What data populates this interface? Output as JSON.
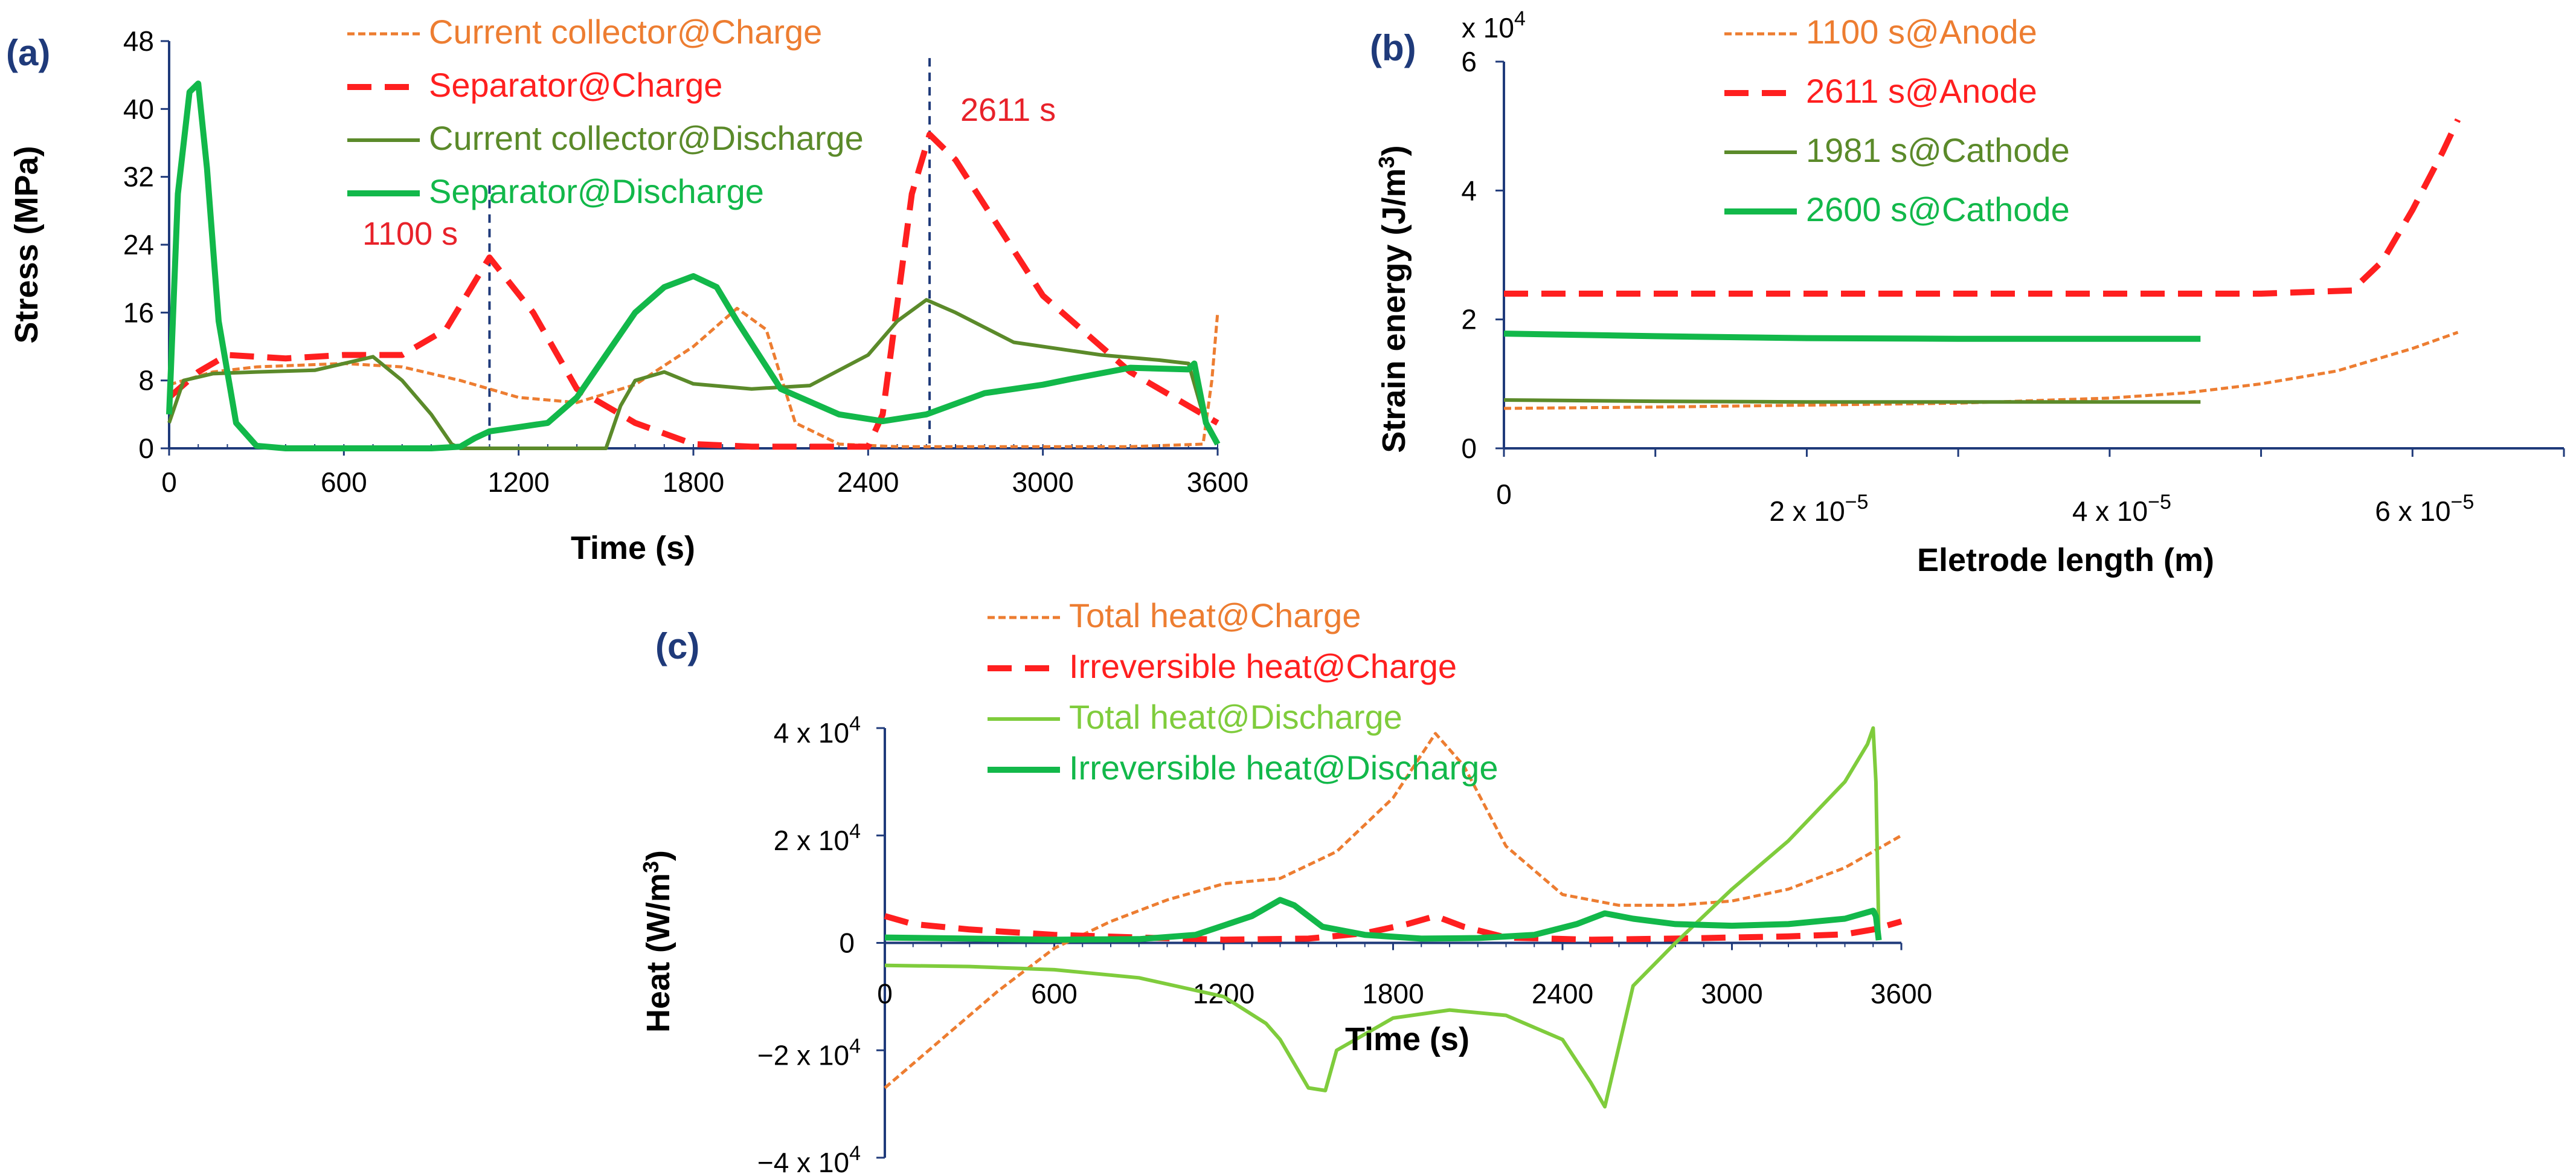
{
  "colors": {
    "orange": "#ed7d31",
    "red": "#ff1f1f",
    "olive": "#5b8a2a",
    "green": "#12b84a",
    "light_green": "#7fcc3c",
    "axis": "#1f3a7a",
    "guide": "#1f3a7a"
  },
  "chart_data": [
    {
      "panel_label": "(a)",
      "type": "line",
      "xlabel": "Time (s)",
      "ylabel": "Stress (MPa)",
      "xlim": [
        0,
        3600
      ],
      "ylim": [
        0,
        48
      ],
      "xticks": [
        0,
        600,
        1200,
        1800,
        2400,
        3000,
        3600
      ],
      "yticks": [
        0,
        8,
        16,
        24,
        32,
        40,
        48
      ],
      "legend_position": "top-center",
      "annotations": [
        {
          "text": "1100 s",
          "x": 1100,
          "y": 22.5
        },
        {
          "text": "2611 s",
          "x": 2611,
          "y": 38
        }
      ],
      "guides": [
        1100,
        2611
      ],
      "series": [
        {
          "name": "Current collector@Charge",
          "color": "orange",
          "style": "dotted",
          "x": [
            0,
            150,
            300,
            600,
            800,
            1000,
            1200,
            1400,
            1600,
            1800,
            1950,
            2050,
            2150,
            2300,
            2500,
            2700,
            3000,
            3300,
            3550,
            3580,
            3600
          ],
          "y": [
            7.5,
            9,
            9.6,
            10,
            9.6,
            8,
            6,
            5.4,
            7.5,
            12,
            16.5,
            14,
            3,
            0.5,
            0.2,
            0.2,
            0.2,
            0.2,
            0.5,
            8,
            16
          ]
        },
        {
          "name": "Separator@Charge",
          "color": "red",
          "style": "dashed",
          "x": [
            0,
            100,
            200,
            400,
            600,
            800,
            950,
            1100,
            1250,
            1400,
            1600,
            1800,
            2000,
            2200,
            2400,
            2450,
            2550,
            2611,
            2700,
            3000,
            3300,
            3500,
            3600
          ],
          "y": [
            6,
            9,
            11,
            10.6,
            11,
            11,
            14,
            22.5,
            16,
            7,
            3,
            0.5,
            0.2,
            0.2,
            0.2,
            4,
            30,
            37,
            34,
            18,
            9,
            5,
            3
          ]
        },
        {
          "name": "Current collector@Discharge",
          "color": "olive",
          "style": "solid",
          "x": [
            0,
            50,
            150,
            300,
            500,
            700,
            800,
            900,
            970,
            1000,
            1300,
            1500,
            1550,
            1600,
            1700,
            1800,
            2000,
            2200,
            2400,
            2500,
            2600,
            2700,
            2900,
            3200,
            3400,
            3500,
            3550,
            3600
          ],
          "y": [
            3,
            8,
            8.8,
            9,
            9.2,
            10.8,
            8,
            4,
            0.5,
            0,
            0,
            0,
            5,
            8,
            9,
            7.6,
            7,
            7.4,
            11,
            15,
            17.5,
            16,
            12.5,
            11,
            10.4,
            10,
            4,
            0.5
          ]
        },
        {
          "name": "Separator@Discharge",
          "color": "green",
          "style": "thick",
          "x": [
            0,
            30,
            70,
            100,
            130,
            170,
            230,
            300,
            400,
            600,
            900,
            1000,
            1050,
            1100,
            1200,
            1300,
            1400,
            1500,
            1600,
            1700,
            1800,
            1880,
            1950,
            2100,
            2300,
            2450,
            2600,
            2800,
            3000,
            3100,
            3300,
            3500,
            3520,
            3560,
            3600
          ],
          "y": [
            4,
            30,
            42,
            43,
            33,
            15,
            3,
            0.3,
            0,
            0,
            0,
            0.2,
            1.2,
            2,
            2.5,
            3,
            6,
            11,
            16,
            19,
            20.3,
            19,
            15,
            7,
            4,
            3.2,
            4,
            6.5,
            7.5,
            8.2,
            9.5,
            9.3,
            10,
            3,
            0.5
          ]
        }
      ]
    },
    {
      "panel_label": "(b)",
      "type": "line",
      "xlabel": "Eletrode length (m)",
      "ylabel": "Strain energy (J/m3)",
      "ylabel_main": "Strain energy (J/m",
      "ylabel_sup": "3",
      "ylabel_end": ")",
      "y_multiplier": "x 10",
      "y_multiplier_exp": "4",
      "xlim": [
        0,
        7e-05
      ],
      "ylim": [
        0,
        6
      ],
      "xtick_labels": [
        "0",
        "2 x 10",
        "4 x 10",
        "6 x 10"
      ],
      "xtick_exp": "−5",
      "xtick_values": [
        0,
        2e-05,
        4e-05,
        6e-05
      ],
      "yticks": [
        0,
        2,
        4,
        6
      ],
      "legend_position": "top-center",
      "series": [
        {
          "name": "1100 s@Anode",
          "color": "orange",
          "style": "dotted",
          "x": [
            0,
            1e-05,
            2e-05,
            3e-05,
            4e-05,
            4.5e-05,
            5e-05,
            5.5e-05,
            6e-05,
            6.3e-05
          ],
          "y": [
            0.62,
            0.64,
            0.67,
            0.7,
            0.78,
            0.86,
            1.0,
            1.2,
            1.55,
            1.8
          ]
        },
        {
          "name": "2611 s@Anode",
          "color": "red",
          "style": "dashed",
          "x": [
            0,
            1e-05,
            2e-05,
            3e-05,
            4e-05,
            5e-05,
            5.6e-05,
            5.8e-05,
            6e-05,
            6.2e-05,
            6.3e-05
          ],
          "y": [
            2.4,
            2.4,
            2.4,
            2.4,
            2.4,
            2.4,
            2.45,
            2.9,
            3.7,
            4.6,
            5.1
          ]
        },
        {
          "name": "1981 s@Cathode",
          "color": "olive",
          "style": "solid",
          "x": [
            0,
            1e-05,
            2e-05,
            3e-05,
            4e-05,
            4.6e-05
          ],
          "y": [
            0.75,
            0.73,
            0.72,
            0.72,
            0.72,
            0.72
          ]
        },
        {
          "name": "2600 s@Cathode",
          "color": "green",
          "style": "thick",
          "x": [
            0,
            1e-05,
            2e-05,
            3e-05,
            4e-05,
            4.6e-05
          ],
          "y": [
            1.78,
            1.74,
            1.71,
            1.7,
            1.7,
            1.7
          ]
        }
      ]
    },
    {
      "panel_label": "(c)",
      "type": "line",
      "xlabel": "Time (s)",
      "ylabel": "Heat (W/m3)",
      "ylabel_main": "Heat (W/m",
      "ylabel_sup": "3",
      "ylabel_end": ")",
      "xlim": [
        0,
        3600
      ],
      "ylim": [
        -40000,
        40000
      ],
      "xticks": [
        0,
        600,
        1200,
        1800,
        2400,
        3000,
        3600
      ],
      "ytick_values": [
        -40000,
        -20000,
        0,
        20000,
        40000
      ],
      "ytick_labels": [
        "−4 x 10",
        "−2 x 10",
        "0",
        "2 x 10",
        "4 x 10"
      ],
      "ytick_exp": "4",
      "legend_position": "top-center",
      "series": [
        {
          "name": "Total heat@Charge",
          "color": "orange",
          "style": "dotted",
          "x": [
            0,
            200,
            400,
            600,
            800,
            1000,
            1200,
            1400,
            1600,
            1800,
            1950,
            2050,
            2200,
            2400,
            2600,
            2800,
            3000,
            3200,
            3400,
            3600
          ],
          "y": [
            -27000,
            -18000,
            -9000,
            -1000,
            4000,
            8000,
            11000,
            12000,
            17000,
            27000,
            39000,
            33000,
            18000,
            9000,
            7000,
            7000,
            7800,
            10000,
            14000,
            20000
          ]
        },
        {
          "name": "Irreversible heat@Charge",
          "color": "red",
          "style": "dashed",
          "x": [
            0,
            100,
            300,
            600,
            900,
            1200,
            1500,
            1700,
            1850,
            1950,
            2050,
            2200,
            2500,
            2800,
            3000,
            3200,
            3400,
            3500,
            3600
          ],
          "y": [
            5000,
            3500,
            2500,
            1500,
            1000,
            600,
            800,
            1800,
            3500,
            5000,
            3000,
            1000,
            600,
            800,
            1000,
            1200,
            1600,
            2500,
            4000
          ]
        },
        {
          "name": "Total heat@Discharge",
          "color": "light_green",
          "style": "solid",
          "x": [
            0,
            300,
            600,
            900,
            1200,
            1350,
            1400,
            1500,
            1560,
            1600,
            1800,
            2000,
            2200,
            2400,
            2500,
            2550,
            2650,
            2800,
            3000,
            3200,
            3400,
            3480,
            3500,
            3510,
            3520
          ],
          "y": [
            -4200,
            -4400,
            -5000,
            -6500,
            -10000,
            -15000,
            -18000,
            -27000,
            -27500,
            -20000,
            -14000,
            -12500,
            -13500,
            -18000,
            -26000,
            -30500,
            -8000,
            0,
            10000,
            19000,
            30000,
            37000,
            40000,
            30000,
            2000
          ]
        },
        {
          "name": "Irreversible heat@Discharge",
          "color": "green",
          "style": "thick",
          "x": [
            0,
            300,
            600,
            900,
            1100,
            1300,
            1400,
            1450,
            1550,
            1700,
            1900,
            2100,
            2300,
            2450,
            2550,
            2650,
            2800,
            3000,
            3200,
            3400,
            3500,
            3510,
            3520
          ],
          "y": [
            1000,
            800,
            600,
            700,
            1500,
            5000,
            8000,
            7000,
            3000,
            1500,
            800,
            900,
            1500,
            3500,
            5500,
            4500,
            3500,
            3200,
            3500,
            4500,
            6000,
            5000,
            500
          ]
        }
      ]
    }
  ]
}
